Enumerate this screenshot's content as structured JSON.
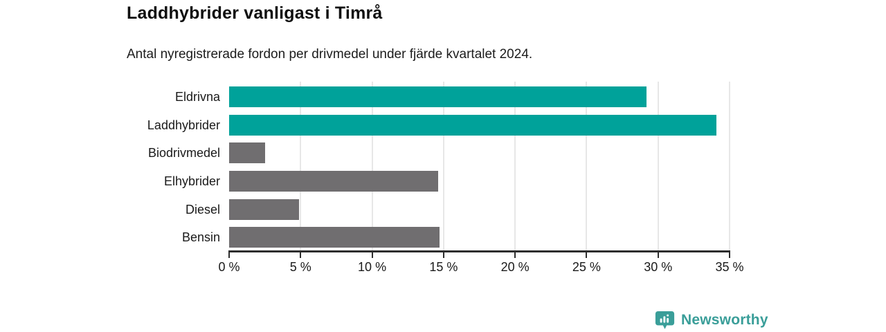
{
  "header": {
    "title": "Laddhybrider vanligast i Timrå",
    "subtitle": "Antal nyregistrerade fordon per drivmedel under fjärde kvartalet 2024."
  },
  "chart_data": {
    "type": "bar",
    "orientation": "horizontal",
    "title": "Laddhybrider vanligast i Timrå",
    "subtitle": "Antal nyregistrerade fordon per drivmedel under fjärde kvartalet 2024.",
    "categories": [
      "Eldrivna",
      "Laddhybrider",
      "Biodrivmedel",
      "Elhybrider",
      "Diesel",
      "Bensin"
    ],
    "values": [
      29.2,
      34.1,
      2.5,
      14.6,
      4.9,
      14.7
    ],
    "unit": "%",
    "bar_colors": [
      "#00a29a",
      "#00a29a",
      "#706e70",
      "#706e70",
      "#706e70",
      "#706e70"
    ],
    "xlim": [
      0,
      35
    ],
    "x_tick_values": [
      0,
      5,
      10,
      15,
      20,
      25,
      30,
      35
    ],
    "x_tick_labels": [
      "0 %",
      "5 %",
      "10 %",
      "15 %",
      "20 %",
      "25 %",
      "30 %",
      "35 %"
    ],
    "grid": "vertical-only",
    "legend": false
  },
  "footer": {
    "brand": "Newsworthy",
    "logo_icon": "newsworthy-chart-bubble-icon",
    "brand_color": "#3a9e99"
  },
  "colors": {
    "highlight": "#00a29a",
    "muted_bar": "#706e70",
    "gridline": "#e7e7e7",
    "axis": "#2d2d2d",
    "text": "#1a1a1a",
    "background": "#ffffff"
  }
}
